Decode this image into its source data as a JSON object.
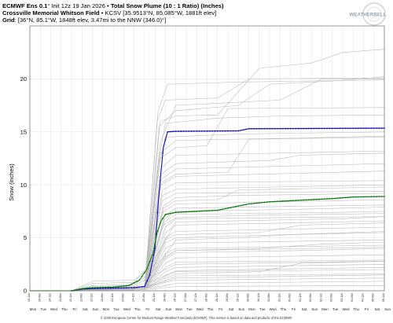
{
  "header": {
    "line1_bold": "ECMWF Ens 0.1",
    "line1_rest": "° Init 12z 19 Jan 2026 • ",
    "line1_bold2": "Total Snow Plume (10 : 1 Ratio) (Inches)",
    "line2_bold": "Crossville Memorial Whitson Field",
    "line2_rest": " • KCSV [35.9513°N, 85.085°W, 1881ft elev]",
    "line3_bold": "Grid",
    "line3_rest": ": [36°N, 85.1°W, 1848ft elev, 3.47mi to the NNW (346.0)°]"
  },
  "logo": {
    "text": "WEATHERBELL",
    "icon": "weatherbell-logo-icon",
    "color": "#9aa6b0"
  },
  "footer": {
    "text": "© 2026 European Centre for Medium-Range Weather Forecasts (ECMWF). This service is based on data and products of the ECMWF."
  },
  "colors": {
    "member": "#b8b8b8",
    "control": "#1010b0",
    "mean": "#0a7a0a",
    "grid": "#e2e2e2"
  },
  "chart_data": {
    "type": "line",
    "ylabel": "Snow (inches)",
    "ylim": [
      0,
      25
    ],
    "yticks": [
      0,
      5,
      10,
      15,
      20
    ],
    "grid": true,
    "x_date_labels": [
      "19-12z",
      "20-00z",
      "20-12z",
      "21-00z",
      "21-12z",
      "22-00z",
      "22-12z",
      "23-00z",
      "23-12z",
      "24-00z",
      "24-12z",
      "25-00z",
      "25-12z",
      "26-00z",
      "26-12z",
      "27-00z",
      "27-12z",
      "28-00z",
      "28-12z",
      "29-00z",
      "29-12z",
      "30-00z",
      "30-12z",
      "31-00z",
      "31-12z",
      "01-00z",
      "01-12z",
      "02-00z",
      "02-12z",
      "03-00z",
      "03-12z",
      "04-00z",
      "04-12z",
      "05-00z",
      "05-12z"
    ],
    "x_day_labels": [
      "Mon",
      "Tue",
      "Wed",
      "Thu",
      "Fri",
      "Sat",
      "Sun",
      "Mon",
      "Tue",
      "Wed",
      "Thu",
      "Fri",
      "Sat",
      "Sun",
      "Mon",
      "Tue",
      "Wed",
      "Thu",
      "Fri",
      "Sat",
      "Sun",
      "Mon",
      "Tue",
      "Wed",
      "Thu",
      "Fri",
      "Sat",
      "Sun",
      "Mon",
      "Tue",
      "Wed",
      "Thu",
      "Fri",
      "Sat",
      "Sun"
    ],
    "xlim": [
      0,
      34
    ],
    "highlighted_series": [
      {
        "name": "control",
        "color": "#1010b0",
        "points": [
          [
            0,
            0
          ],
          [
            4,
            0
          ],
          [
            5,
            0.15
          ],
          [
            6,
            0.2
          ],
          [
            8,
            0.25
          ],
          [
            10,
            0.3
          ],
          [
            11,
            0.4
          ],
          [
            11.5,
            1.5
          ],
          [
            12,
            4
          ],
          [
            12.4,
            9.4
          ],
          [
            12.8,
            13.5
          ],
          [
            13.2,
            15.0
          ],
          [
            14,
            15.05
          ],
          [
            20,
            15.1
          ],
          [
            21,
            15.3
          ],
          [
            34,
            15.35
          ]
        ]
      },
      {
        "name": "mean",
        "color": "#0a7a0a",
        "points": [
          [
            0,
            0
          ],
          [
            4,
            0
          ],
          [
            5,
            0.2
          ],
          [
            6,
            0.3
          ],
          [
            8,
            0.35
          ],
          [
            9.5,
            0.5
          ],
          [
            10.5,
            1.0
          ],
          [
            11.2,
            2.0
          ],
          [
            11.8,
            3.5
          ],
          [
            12.2,
            5.5
          ],
          [
            12.6,
            6.6
          ],
          [
            13.0,
            7.2
          ],
          [
            14,
            7.4
          ],
          [
            16,
            7.5
          ],
          [
            18,
            7.6
          ],
          [
            19.5,
            7.9
          ],
          [
            21,
            8.2
          ],
          [
            23,
            8.4
          ],
          [
            25,
            8.5
          ],
          [
            27,
            8.6
          ],
          [
            29,
            8.7
          ],
          [
            31,
            8.85
          ],
          [
            34,
            8.9
          ]
        ]
      }
    ],
    "members": [
      [
        [
          4,
          0
        ],
        [
          11,
          0.3
        ],
        [
          12.5,
          16
        ],
        [
          14,
          16.5
        ],
        [
          18,
          16.6
        ],
        [
          22,
          21
        ],
        [
          27,
          21.5
        ],
        [
          30,
          22.5
        ],
        [
          34,
          22.8
        ]
      ],
      [
        [
          4,
          0
        ],
        [
          11,
          0.4
        ],
        [
          12.4,
          15.5
        ],
        [
          14,
          17
        ],
        [
          20,
          17.5
        ],
        [
          23,
          19.5
        ],
        [
          29,
          19.8
        ],
        [
          34,
          20.2
        ]
      ],
      [
        [
          4,
          0
        ],
        [
          11,
          0.4
        ],
        [
          12.5,
          14
        ],
        [
          14,
          17.5
        ],
        [
          24,
          18
        ],
        [
          28,
          20
        ],
        [
          34,
          20
        ]
      ],
      [
        [
          4,
          0
        ],
        [
          11,
          0.3
        ],
        [
          12.3,
          12
        ],
        [
          13,
          15.8
        ],
        [
          18,
          16.3
        ],
        [
          24,
          16.5
        ],
        [
          34,
          16.6
        ]
      ],
      [
        [
          4,
          0
        ],
        [
          11,
          0.2
        ],
        [
          12.2,
          11
        ],
        [
          13,
          14.5
        ],
        [
          20,
          14.8
        ],
        [
          34,
          15.0
        ]
      ],
      [
        [
          4,
          0
        ],
        [
          11,
          0.2
        ],
        [
          12.5,
          13
        ],
        [
          14,
          14.2
        ],
        [
          25,
          14.4
        ],
        [
          34,
          14.6
        ]
      ],
      [
        [
          4,
          0
        ],
        [
          11,
          0.3
        ],
        [
          12.5,
          12.5
        ],
        [
          14,
          13.5
        ],
        [
          17,
          13.7
        ],
        [
          19,
          17.2
        ],
        [
          34,
          17.3
        ]
      ],
      [
        [
          4,
          0
        ],
        [
          11,
          0.2
        ],
        [
          12.5,
          11.5
        ],
        [
          14,
          12.8
        ],
        [
          34,
          13.2
        ]
      ],
      [
        [
          4,
          0
        ],
        [
          11,
          0.2
        ],
        [
          12.6,
          11
        ],
        [
          14,
          12
        ],
        [
          23,
          12.3
        ],
        [
          26,
          12.8
        ],
        [
          34,
          13
        ]
      ],
      [
        [
          4,
          0
        ],
        [
          11,
          0.3
        ],
        [
          12.6,
          10.5
        ],
        [
          14,
          11.5
        ],
        [
          34,
          12
        ]
      ],
      [
        [
          4,
          0
        ],
        [
          11,
          0.2
        ],
        [
          12.6,
          10
        ],
        [
          14,
          10.8
        ],
        [
          22,
          11
        ],
        [
          34,
          11.3
        ]
      ],
      [
        [
          4,
          0
        ],
        [
          11,
          0.2
        ],
        [
          12.7,
          9.5
        ],
        [
          14,
          10.2
        ],
        [
          34,
          10.4
        ]
      ],
      [
        [
          4,
          0
        ],
        [
          11,
          0.2
        ],
        [
          12.7,
          9
        ],
        [
          14,
          9.6
        ],
        [
          24,
          9.8
        ],
        [
          34,
          10
        ]
      ],
      [
        [
          4,
          0
        ],
        [
          11,
          0.2
        ],
        [
          12.7,
          8.5
        ],
        [
          14,
          9.2
        ],
        [
          34,
          9.4
        ]
      ],
      [
        [
          4,
          0
        ],
        [
          11,
          0.2
        ],
        [
          12.8,
          8
        ],
        [
          14,
          8.8
        ],
        [
          20,
          9
        ],
        [
          34,
          9.2
        ]
      ],
      [
        [
          4,
          0
        ],
        [
          11,
          0.2
        ],
        [
          12.8,
          7.5
        ],
        [
          14,
          8.2
        ],
        [
          34,
          8.6
        ]
      ],
      [
        [
          4,
          0
        ],
        [
          11,
          0.2
        ],
        [
          12.9,
          7
        ],
        [
          14,
          7.8
        ],
        [
          34,
          8.1
        ]
      ],
      [
        [
          4,
          0
        ],
        [
          11,
          0.2
        ],
        [
          12.9,
          6.5
        ],
        [
          14,
          7.2
        ],
        [
          30,
          7.4
        ],
        [
          34,
          7.5
        ]
      ],
      [
        [
          4,
          0
        ],
        [
          11,
          0.2
        ],
        [
          13,
          6
        ],
        [
          14,
          6.8
        ],
        [
          34,
          7
        ]
      ],
      [
        [
          4,
          0
        ],
        [
          11,
          0.2
        ],
        [
          13,
          5.5
        ],
        [
          14,
          6.2
        ],
        [
          25,
          6.4
        ],
        [
          34,
          6.6
        ]
      ],
      [
        [
          4,
          0
        ],
        [
          11,
          0.2
        ],
        [
          13,
          5
        ],
        [
          14,
          5.6
        ],
        [
          34,
          6
        ]
      ],
      [
        [
          4,
          0
        ],
        [
          11,
          0.2
        ],
        [
          13,
          4.5
        ],
        [
          14,
          5
        ],
        [
          28,
          5.4
        ],
        [
          34,
          5.6
        ]
      ],
      [
        [
          4,
          0
        ],
        [
          11,
          0.2
        ],
        [
          13,
          4
        ],
        [
          14,
          4.5
        ],
        [
          34,
          4.8
        ]
      ],
      [
        [
          4,
          0
        ],
        [
          11,
          0.2
        ],
        [
          13,
          3.5
        ],
        [
          14,
          4
        ],
        [
          34,
          4.3
        ]
      ],
      [
        [
          4,
          0
        ],
        [
          11,
          0.2
        ],
        [
          13,
          3
        ],
        [
          14,
          3.6
        ],
        [
          26,
          3.8
        ],
        [
          34,
          4.0
        ]
      ],
      [
        [
          4,
          0
        ],
        [
          11,
          0.2
        ],
        [
          13,
          2.6
        ],
        [
          14,
          3.1
        ],
        [
          34,
          3.4
        ]
      ],
      [
        [
          4,
          0
        ],
        [
          11,
          0.2
        ],
        [
          13,
          2.2
        ],
        [
          14,
          2.7
        ],
        [
          34,
          2.9
        ]
      ],
      [
        [
          4,
          0
        ],
        [
          11,
          0.2
        ],
        [
          13,
          1.8
        ],
        [
          14,
          2.2
        ],
        [
          34,
          2.5
        ]
      ],
      [
        [
          4,
          0
        ],
        [
          11,
          0.2
        ],
        [
          13,
          1.4
        ],
        [
          14,
          1.8
        ],
        [
          34,
          2.0
        ]
      ],
      [
        [
          4,
          0
        ],
        [
          11,
          0.2
        ],
        [
          13,
          1
        ],
        [
          14,
          1.4
        ],
        [
          34,
          1.6
        ]
      ],
      [
        [
          4,
          0
        ],
        [
          11,
          0.2
        ],
        [
          13,
          0.8
        ],
        [
          14,
          1
        ],
        [
          34,
          1.2
        ]
      ],
      [
        [
          4,
          0
        ],
        [
          11,
          0.2
        ],
        [
          13,
          0.5
        ],
        [
          14,
          0.7
        ],
        [
          34,
          0.9
        ]
      ],
      [
        [
          4,
          0
        ],
        [
          6,
          0.5
        ],
        [
          10,
          0.6
        ],
        [
          12,
          2
        ],
        [
          14,
          4.8
        ],
        [
          20,
          5
        ],
        [
          25,
          5.3
        ],
        [
          34,
          5.5
        ]
      ],
      [
        [
          4,
          0
        ],
        [
          6,
          0.7
        ],
        [
          10,
          0.8
        ],
        [
          12,
          3
        ],
        [
          14,
          6.5
        ],
        [
          30,
          6.8
        ],
        [
          34,
          7
        ]
      ],
      [
        [
          4,
          0
        ],
        [
          6,
          0.9
        ],
        [
          10,
          1
        ],
        [
          12,
          2.5
        ],
        [
          14,
          3.8
        ],
        [
          34,
          4.1
        ]
      ],
      [
        [
          4,
          0
        ],
        [
          6,
          0.4
        ],
        [
          10,
          0.5
        ],
        [
          12,
          1.5
        ],
        [
          14,
          2.5
        ],
        [
          34,
          2.8
        ]
      ],
      [
        [
          4,
          0
        ],
        [
          6,
          0.3
        ],
        [
          10,
          0.4
        ],
        [
          12,
          1
        ],
        [
          14,
          1.9
        ],
        [
          34,
          2.2
        ]
      ],
      [
        [
          4,
          0
        ],
        [
          6,
          0.2
        ],
        [
          10,
          0.3
        ],
        [
          12,
          0.6
        ],
        [
          14,
          1.2
        ],
        [
          34,
          1.5
        ]
      ],
      [
        [
          4,
          0
        ],
        [
          11,
          0.2
        ],
        [
          12.6,
          10.2
        ],
        [
          14,
          11
        ],
        [
          19,
          11.2
        ],
        [
          21,
          14.3
        ],
        [
          34,
          14.5
        ]
      ],
      [
        [
          4,
          0
        ],
        [
          11,
          0.2
        ],
        [
          12.8,
          7.8
        ],
        [
          14,
          8.5
        ],
        [
          18,
          8.6
        ],
        [
          20,
          9.5
        ],
        [
          34,
          9.8
        ]
      ],
      [
        [
          4,
          0
        ],
        [
          11,
          0.2
        ],
        [
          13,
          4.8
        ],
        [
          14,
          5.3
        ],
        [
          22,
          5.5
        ],
        [
          26,
          6.2
        ],
        [
          34,
          6.4
        ]
      ],
      [
        [
          4,
          0
        ],
        [
          11,
          0.2
        ],
        [
          13,
          3.2
        ],
        [
          14,
          3.8
        ],
        [
          22,
          4
        ],
        [
          28,
          4.4
        ],
        [
          34,
          4.6
        ]
      ],
      [
        [
          4,
          0
        ],
        [
          11,
          0.2
        ],
        [
          12.9,
          6.8
        ],
        [
          14,
          7.5
        ],
        [
          26,
          7.7
        ],
        [
          34,
          7.9
        ]
      ],
      [
        [
          4,
          0
        ],
        [
          11,
          0.2
        ],
        [
          13,
          1.2
        ],
        [
          14,
          1.6
        ],
        [
          22,
          1.8
        ],
        [
          26,
          2.6
        ],
        [
          34,
          2.8
        ]
      ],
      [
        [
          4,
          0
        ],
        [
          11,
          0.1
        ],
        [
          12.2,
          16
        ],
        [
          13,
          18
        ],
        [
          18,
          18.2
        ],
        [
          21,
          20
        ],
        [
          34,
          20.1
        ]
      ],
      [
        [
          4,
          0
        ],
        [
          11,
          0.1
        ],
        [
          12.3,
          17
        ],
        [
          13.2,
          19.5
        ],
        [
          20,
          19.7
        ],
        [
          34,
          19.9
        ]
      ],
      [
        [
          4,
          0
        ],
        [
          11,
          0.1
        ],
        [
          12.8,
          6.2
        ],
        [
          14,
          6.9
        ],
        [
          20,
          7.1
        ],
        [
          34,
          7.3
        ]
      ],
      [
        [
          4,
          0
        ],
        [
          11,
          0.1
        ],
        [
          13,
          0.3
        ],
        [
          14,
          0.4
        ],
        [
          34,
          0.5
        ]
      ]
    ]
  }
}
